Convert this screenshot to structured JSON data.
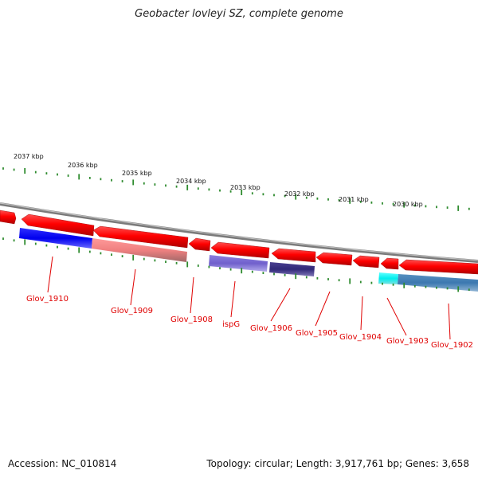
{
  "title": "Geobacter lovleyi SZ, complete genome",
  "footer": {
    "accession": "Accession: NC_010814",
    "summary": "Topology: circular; Length: 3,917,761 bp; Genes: 3,658"
  },
  "colors": {
    "backbone": "#888888",
    "gene_red": "#ff0000",
    "gene_red_dark": "#a00000",
    "tick_green": "#2e8b2e",
    "label_red": "#e00000"
  },
  "kbp_labels": [
    "2037 kbp",
    "2036 kbp",
    "2035 kbp",
    "2034 kbp",
    "2033 kbp",
    "2032 kbp",
    "2031 kbp",
    "2030 kbp"
  ],
  "genes": [
    {
      "label": "Glov_1910"
    },
    {
      "label": "Glov_1909"
    },
    {
      "label": "Glov_1908"
    },
    {
      "label": "ispG"
    },
    {
      "label": "Glov_1906"
    },
    {
      "label": "Glov_1905"
    },
    {
      "label": "Glov_1904"
    },
    {
      "label": "Glov_1903"
    },
    {
      "label": "Glov_1902"
    }
  ]
}
